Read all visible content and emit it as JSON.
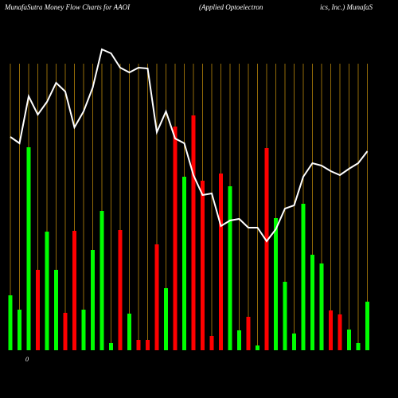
{
  "chart_data": {
    "type": "bar",
    "title": "MunafaSutra  Money Flow  Charts for AAOI",
    "subtitle": "(Applied Optoelectron",
    "subtitle_2": "ics,  Inc.) MunafaS",
    "categories": [
      null,
      null,
      null,
      null,
      null,
      null,
      null,
      null,
      null,
      null,
      null,
      null,
      null,
      null,
      null,
      null,
      null,
      null,
      null,
      null,
      null,
      null,
      null,
      null,
      null,
      null,
      null,
      null,
      null,
      null,
      null,
      null,
      null,
      null,
      null,
      null,
      null,
      null,
      null,
      null
    ],
    "values": [
      69,
      51,
      255,
      101,
      149,
      101,
      47,
      150,
      51,
      126,
      175,
      9,
      151,
      46,
      13,
      13,
      133,
      78,
      281,
      218,
      295,
      213,
      18,
      222,
      206,
      25,
      42,
      6,
      254,
      166,
      86,
      21,
      184,
      120,
      109,
      50,
      45,
      26,
      9,
      61
    ],
    "colors": [
      "#00ff00",
      "#00ff00",
      "#00ff00",
      "#ff0000",
      "#00ff00",
      "#00ff00",
      "#ff0000",
      "#ff0000",
      "#00ff00",
      "#00ff00",
      "#00ff00",
      "#00ff00",
      "#ff0000",
      "#00ff00",
      "#ff0000",
      "#ff0000",
      "#ff0000",
      "#00ff00",
      "#ff0000",
      "#00ff00",
      "#ff0000",
      "#ff0000",
      "#ff0000",
      "#ff0000",
      "#00ff00",
      "#00ff00",
      "#ff0000",
      "#00ff00",
      "#ff0000",
      "#00ff00",
      "#00ff00",
      "#00ff00",
      "#00ff00",
      "#00ff00",
      "#00ff00",
      "#ff0000",
      "#ff0000",
      "#00ff00",
      "#00ff00",
      "#00ff00"
    ],
    "line_values": [
      268,
      260,
      319,
      296,
      312,
      336,
      325,
      280,
      300,
      330,
      378,
      373,
      355,
      349,
      355,
      354,
      274,
      300,
      266,
      260,
      220,
      195,
      197,
      156,
      163,
      165,
      154,
      154,
      137,
      152,
      178,
      182,
      218,
      235,
      232,
      225,
      220,
      228,
      235,
      250
    ],
    "line_color": "#ffffff",
    "ylim": [
      0,
      380
    ],
    "yticks": [
      0
    ]
  }
}
